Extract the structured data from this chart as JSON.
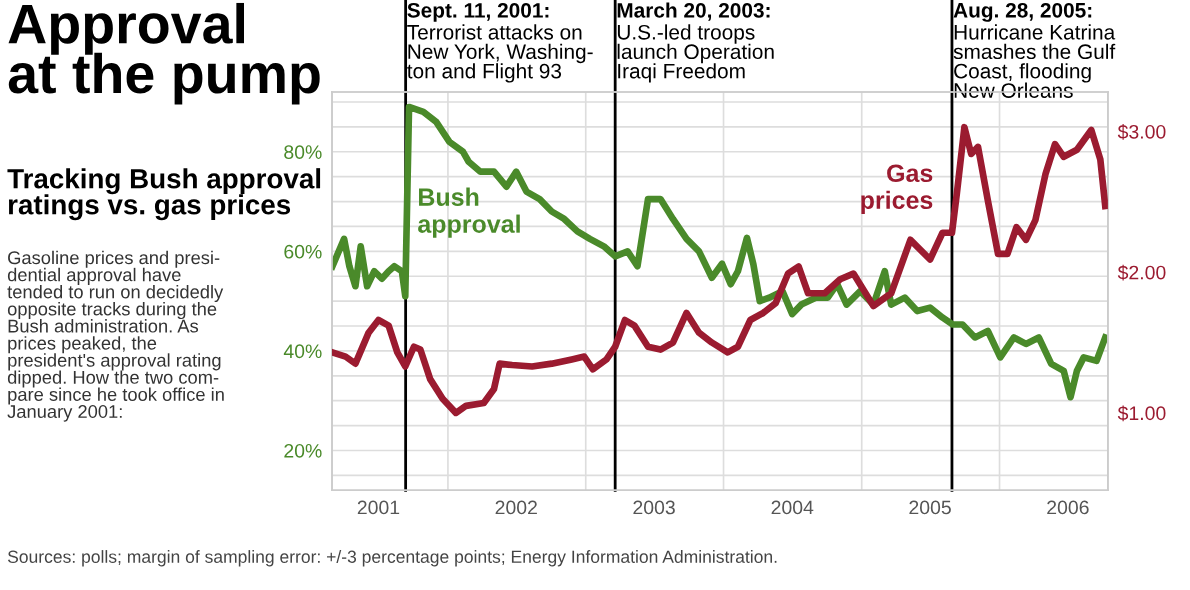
{
  "chart_data": {
    "type": "line",
    "title": "Approval\nat the pump",
    "subtitle": "Tracking Bush approval\nratings vs. gas prices",
    "annotations": [
      "Gasoline prices and presi-\ndential approval have\ntended to run on decidedly\nopposite tracks during the\nBush administration. As\nprices peaked, the\npresident's approval rating\ndipped. How the two com-\npare since he took office in\nJanuary 2001:",
      "Sources: polls; margin of sampling error: +/-3 percentage points; Energy Information Administration."
    ],
    "series": [
      {
        "name": "Bush\napproval",
        "color": "#4a8a2a",
        "x": [
          "2001-03-01",
          "2001-04-01",
          "2001-04-15",
          "2001-05-01",
          "2001-05-15",
          "2001-06-01",
          "2001-06-20",
          "2001-07-10",
          "2001-07-28",
          "2001-08-12",
          "2001-09-01",
          "2001-09-10",
          "2001-09-20",
          "2001-10-28",
          "2001-12-01",
          "2002-01-05",
          "2002-02-10",
          "2002-02-25",
          "2002-03-28",
          "2002-05-03",
          "2002-06-05",
          "2002-07-01",
          "2002-07-28",
          "2002-09-01",
          "2002-10-03",
          "2002-11-05",
          "2002-12-10",
          "2003-01-12",
          "2003-02-18",
          "2003-03-20",
          "2003-04-22",
          "2003-05-18",
          "2003-06-15",
          "2003-07-18",
          "2003-08-20",
          "2003-09-25",
          "2003-10-28",
          "2003-12-01",
          "2003-12-28",
          "2004-01-20",
          "2004-02-08",
          "2004-03-03",
          "2004-03-20",
          "2004-04-06",
          "2004-05-01",
          "2004-06-05",
          "2004-07-01",
          "2004-07-25",
          "2004-09-01",
          "2004-10-03",
          "2004-10-28",
          "2004-11-22",
          "2004-12-28",
          "2005-02-01",
          "2005-03-03",
          "2005-03-20",
          "2005-04-25",
          "2005-05-28",
          "2005-07-01",
          "2005-08-03",
          "2005-08-30",
          "2005-09-25",
          "2005-10-28",
          "2005-12-01",
          "2006-01-03",
          "2006-02-08",
          "2006-03-12",
          "2006-04-15",
          "2006-05-18",
          "2006-06-20",
          "2006-07-08",
          "2006-07-25",
          "2006-08-12",
          "2006-09-15",
          "2006-10-08"
        ],
        "values": [
          57,
          62.5,
          57,
          53,
          61,
          53,
          56,
          54.5,
          56,
          57,
          56,
          51,
          89,
          88,
          86,
          82,
          80,
          78,
          76,
          76,
          73,
          76,
          72,
          70.5,
          68,
          66.5,
          64,
          62.5,
          61,
          59,
          60,
          57,
          70.5,
          70.5,
          66.5,
          62.5,
          60,
          54.7,
          57.5,
          53.4,
          56,
          62.7,
          57.4,
          50,
          50.7,
          52,
          47.4,
          49.3,
          50.7,
          50.7,
          53.4,
          49.3,
          52,
          49.3,
          56,
          49.3,
          50.7,
          48,
          48.7,
          46.7,
          45.3,
          45.3,
          42.7,
          44,
          38.7,
          42.7,
          41.4,
          42.7,
          37.4,
          36,
          30.7,
          36,
          38.7,
          38,
          42.7
        ]
      },
      {
        "name": "Gas\nprices",
        "color": "#9b1b30",
        "axis": "y2",
        "x": [
          "2001-03-01",
          "2001-04-05",
          "2001-05-01",
          "2001-06-05",
          "2001-07-01",
          "2001-07-28",
          "2001-08-20",
          "2001-09-10",
          "2001-10-03",
          "2001-10-20",
          "2001-11-15",
          "2001-12-18",
          "2002-01-22",
          "2002-02-18",
          "2002-04-06",
          "2002-05-03",
          "2002-05-18",
          "2002-06-20",
          "2002-08-12",
          "2002-10-03",
          "2002-11-25",
          "2002-12-28",
          "2003-01-20",
          "2003-02-25",
          "2003-03-20",
          "2003-04-15",
          "2003-05-10",
          "2003-06-15",
          "2003-07-18",
          "2003-08-20",
          "2003-09-25",
          "2003-10-28",
          "2003-12-01",
          "2004-01-12",
          "2004-02-08",
          "2004-03-12",
          "2004-04-15",
          "2004-05-18",
          "2004-06-20",
          "2004-07-18",
          "2004-08-12",
          "2004-09-25",
          "2004-11-05",
          "2004-12-10",
          "2005-02-01",
          "2005-03-20",
          "2005-05-10",
          "2005-07-01",
          "2005-08-03",
          "2005-08-28",
          "2005-09-10",
          "2005-09-30",
          "2005-10-18",
          "2005-11-05",
          "2005-12-01",
          "2005-12-28",
          "2006-01-22",
          "2006-02-15",
          "2006-03-12",
          "2006-04-06",
          "2006-05-03",
          "2006-05-28",
          "2006-06-20",
          "2006-07-25",
          "2006-09-01",
          "2006-09-25",
          "2006-10-08"
        ],
        "values": [
          1.43,
          1.4,
          1.35,
          1.57,
          1.66,
          1.62,
          1.43,
          1.33,
          1.47,
          1.45,
          1.24,
          1.1,
          1.0,
          1.05,
          1.07,
          1.17,
          1.35,
          1.34,
          1.33,
          1.35,
          1.38,
          1.4,
          1.31,
          1.38,
          1.47,
          1.66,
          1.62,
          1.47,
          1.45,
          1.5,
          1.71,
          1.57,
          1.5,
          1.43,
          1.47,
          1.66,
          1.71,
          1.78,
          1.99,
          2.04,
          1.85,
          1.85,
          1.95,
          1.99,
          1.76,
          1.85,
          2.23,
          2.09,
          2.28,
          2.28,
          2.56,
          3.03,
          2.84,
          2.89,
          2.51,
          2.13,
          2.13,
          2.32,
          2.23,
          2.37,
          2.7,
          2.91,
          2.82,
          2.87,
          3.01,
          2.8,
          2.47
        ]
      }
    ],
    "xlim": [
      "2001-02-28",
      "2006-10-15"
    ],
    "xticks": [
      {
        "value": "2001-07-01",
        "label": "2001"
      },
      {
        "value": "2002-01-01",
        "label": null
      },
      {
        "value": "2002-07-01",
        "label": "2002"
      },
      {
        "value": "2003-01-01",
        "label": null
      },
      {
        "value": "2003-07-01",
        "label": "2003"
      },
      {
        "value": "2004-01-01",
        "label": null
      },
      {
        "value": "2004-07-01",
        "label": "2004"
      },
      {
        "value": "2005-01-01",
        "label": null
      },
      {
        "value": "2005-07-01",
        "label": "2005"
      },
      {
        "value": "2006-01-01",
        "label": null
      },
      {
        "value": "2006-07-01",
        "label": "2006"
      }
    ],
    "ylim": [
      12,
      92
    ],
    "yticks": [
      {
        "value": 15,
        "label": null
      },
      {
        "value": 20,
        "label": "20%"
      },
      {
        "value": 25,
        "label": null
      },
      {
        "value": 30,
        "label": null
      },
      {
        "value": 35,
        "label": null
      },
      {
        "value": 40,
        "label": "40%"
      },
      {
        "value": 45,
        "label": null
      },
      {
        "value": 50,
        "label": null
      },
      {
        "value": 55,
        "label": null
      },
      {
        "value": 60,
        "label": "60%"
      },
      {
        "value": 65,
        "label": null
      },
      {
        "value": 70,
        "label": null
      },
      {
        "value": 75,
        "label": null
      },
      {
        "value": 80,
        "label": "80%"
      },
      {
        "value": 85,
        "label": null
      },
      {
        "value": 90,
        "label": null
      }
    ],
    "y2lim": [
      0.45,
      3.28
    ],
    "y2ticks": [
      {
        "value": 1,
        "label": "$1.00"
      },
      {
        "value": 2,
        "label": "$2.00"
      },
      {
        "value": 3,
        "label": "$3.00"
      }
    ],
    "ref_lines": [
      {
        "axis": "x",
        "value": "2001-09-11",
        "label": "Sept. 11, 2001:\nTerrorist attacks on\nNew York, Washing-\nton and Flight 93",
        "color": "#000000"
      },
      {
        "axis": "x",
        "value": "2003-03-20",
        "label": "March 20, 2003:\nU.S.-led troops\nlaunch Operation\nIraqi Freedom",
        "color": "#000000"
      },
      {
        "axis": "x",
        "value": "2005-08-28",
        "label": "Aug. 28, 2005:\nHurricane Katrina\nsmashes the Gulf\nCoast, flooding\nNew Orleans",
        "color": "#000000"
      }
    ],
    "grid": true,
    "legend": false,
    "marker": "none",
    "line_style": "solid"
  }
}
